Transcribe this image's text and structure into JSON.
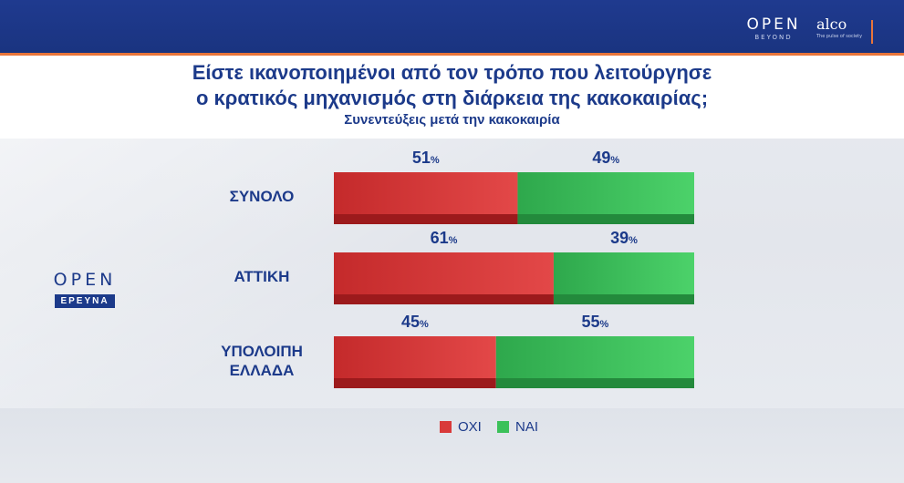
{
  "header": {
    "logo_open": "OPEN",
    "logo_open_sub": "BEYOND",
    "logo_alco": "alco",
    "logo_alco_sub": "The pulse of society"
  },
  "title_line1": "Είστε ικανοποιημένοι από τον τρόπο που λειτούργησε",
  "title_line2": "ο κρατικός μηχανισμός στη διάρκεια της κακοκαιρίας;",
  "subtitle": "Συνεντεύξεις μετά την κακοκαιρία",
  "side_logo": {
    "big": "OPEN",
    "tag": "ΕΡΕΥΝΑ"
  },
  "colors": {
    "oxi": "#d93a3a",
    "nai": "#3cc15a",
    "text": "#1c3a8a",
    "header": "#1f3a8f",
    "accent": "#e9753a"
  },
  "chart_data": {
    "type": "bar",
    "orientation": "horizontal",
    "stacked": true,
    "categories": [
      "ΣΥΝΟΛΟ",
      "ΑΤΤΙΚΗ",
      "ΥΠΟΛΟΙΠΗ ΕΛΛΑΔΑ"
    ],
    "category_lines": [
      [
        "ΣΥΝΟΛΟ"
      ],
      [
        "ΑΤΤΙΚΗ"
      ],
      [
        "ΥΠΟΛΟΙΠΗ",
        "ΕΛΛΑΔΑ"
      ]
    ],
    "series": [
      {
        "name": "ΟΧΙ",
        "values": [
          51,
          61,
          45
        ]
      },
      {
        "name": "ΝΑΙ",
        "values": [
          49,
          39,
          55
        ]
      }
    ],
    "unit": "%",
    "xlim": [
      0,
      100
    ],
    "legend_position": "bottom"
  }
}
